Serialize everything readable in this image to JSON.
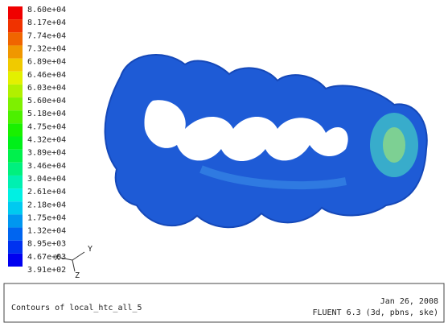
{
  "colorbar": {
    "labels": [
      "8.60e+04",
      "8.17e+04",
      "7.74e+04",
      "7.32e+04",
      "6.89e+04",
      "6.46e+04",
      "6.03e+04",
      "5.60e+04",
      "5.18e+04",
      "4.75e+04",
      "4.32e+04",
      "3.89e+04",
      "3.46e+04",
      "3.04e+04",
      "2.61e+04",
      "2.18e+04",
      "1.75e+04",
      "1.32e+04",
      "8.95e+03",
      "4.67e+03",
      "3.91e+02"
    ]
  },
  "axes": {
    "y": "Y",
    "x": "X",
    "z": "Z"
  },
  "footer": {
    "title": "Contours of local_htc_all_5",
    "date": "Jan 26, 2008",
    "solver": "FLUENT 6.3 (3d, pbns, ske)"
  }
}
